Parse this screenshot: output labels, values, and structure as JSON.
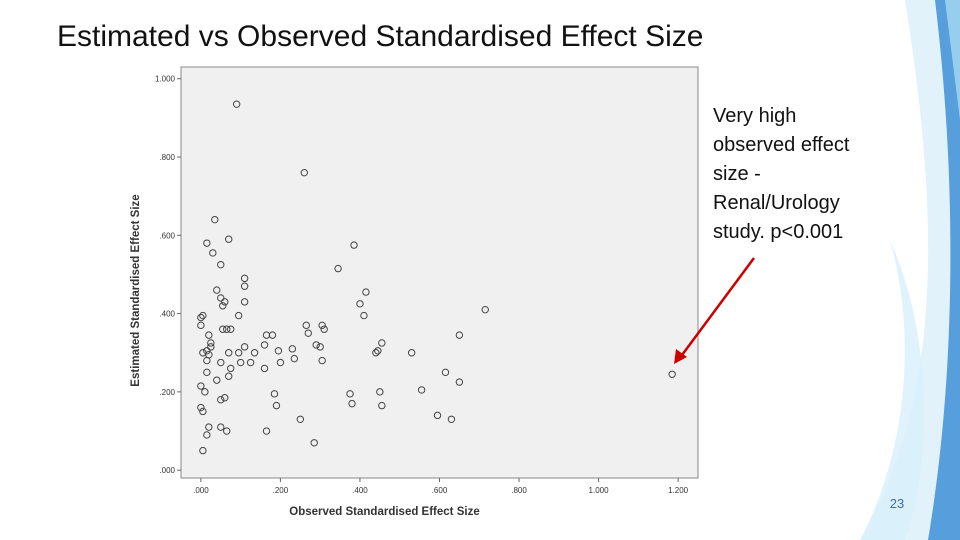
{
  "slide": {
    "title": "Estimated vs Observed Standardised Effect Size",
    "annotation_lines": [
      "Very high",
      "observed effect",
      "size -",
      "Renal/Urology",
      "study. p<0.001"
    ],
    "page_number": "23",
    "colors": {
      "arrow": "#cc0000",
      "plot_background": "#f0f0f0",
      "marker": "#444444",
      "decoration_blue": "#3d8fd6",
      "decoration_light": "#c9e8f7"
    }
  },
  "chart_data": {
    "type": "scatter",
    "title": "",
    "xlabel": "Observed Standardised Effect Size",
    "ylabel": "Estimated Standardised Effect Size",
    "xlim": [
      -0.05,
      1.25
    ],
    "ylim": [
      -0.02,
      1.03
    ],
    "x_ticks": [
      ".000",
      ".200",
      ".400",
      ".600",
      ".800",
      "1.000",
      "1.200"
    ],
    "y_ticks": [
      ".000",
      ".200",
      ".400",
      ".600",
      ".800",
      "1.000"
    ],
    "grid": false,
    "legend": "none",
    "points": [
      [
        0.09,
        0.935
      ],
      [
        0.26,
        0.76
      ],
      [
        0.035,
        0.64
      ],
      [
        0.07,
        0.59
      ],
      [
        0.015,
        0.58
      ],
      [
        0.385,
        0.575
      ],
      [
        0.03,
        0.555
      ],
      [
        0.05,
        0.525
      ],
      [
        0.345,
        0.515
      ],
      [
        0.11,
        0.49
      ],
      [
        0.11,
        0.47
      ],
      [
        0.415,
        0.455
      ],
      [
        0.04,
        0.46
      ],
      [
        0.06,
        0.43
      ],
      [
        0.05,
        0.44
      ],
      [
        0.055,
        0.42
      ],
      [
        0.11,
        0.43
      ],
      [
        0.4,
        0.425
      ],
      [
        0.715,
        0.41
      ],
      [
        0.095,
        0.395
      ],
      [
        0.41,
        0.395
      ],
      [
        0.0,
        0.39
      ],
      [
        0.005,
        0.395
      ],
      [
        0.0,
        0.37
      ],
      [
        0.055,
        0.36
      ],
      [
        0.065,
        0.36
      ],
      [
        0.075,
        0.36
      ],
      [
        0.265,
        0.37
      ],
      [
        0.305,
        0.37
      ],
      [
        0.31,
        0.36
      ],
      [
        0.27,
        0.35
      ],
      [
        0.165,
        0.345
      ],
      [
        0.18,
        0.345
      ],
      [
        0.02,
        0.345
      ],
      [
        0.65,
        0.345
      ],
      [
        0.025,
        0.325
      ],
      [
        0.455,
        0.325
      ],
      [
        0.11,
        0.315
      ],
      [
        0.16,
        0.32
      ],
      [
        0.025,
        0.315
      ],
      [
        0.29,
        0.32
      ],
      [
        0.3,
        0.315
      ],
      [
        0.005,
        0.3
      ],
      [
        0.015,
        0.305
      ],
      [
        0.02,
        0.295
      ],
      [
        0.07,
        0.3
      ],
      [
        0.095,
        0.3
      ],
      [
        0.135,
        0.3
      ],
      [
        0.195,
        0.305
      ],
      [
        0.23,
        0.31
      ],
      [
        0.2,
        0.275
      ],
      [
        0.44,
        0.3
      ],
      [
        0.53,
        0.3
      ],
      [
        0.015,
        0.28
      ],
      [
        0.05,
        0.275
      ],
      [
        0.1,
        0.275
      ],
      [
        0.125,
        0.275
      ],
      [
        0.235,
        0.285
      ],
      [
        0.305,
        0.28
      ],
      [
        0.445,
        0.305
      ],
      [
        0.015,
        0.25
      ],
      [
        0.075,
        0.26
      ],
      [
        0.16,
        0.26
      ],
      [
        0.615,
        0.25
      ],
      [
        0.04,
        0.23
      ],
      [
        0.07,
        0.24
      ],
      [
        0.65,
        0.225
      ],
      [
        0.0,
        0.215
      ],
      [
        0.01,
        0.2
      ],
      [
        0.185,
        0.195
      ],
      [
        0.375,
        0.195
      ],
      [
        0.45,
        0.2
      ],
      [
        0.555,
        0.205
      ],
      [
        1.185,
        0.245
      ],
      [
        0.05,
        0.18
      ],
      [
        0.06,
        0.185
      ],
      [
        0.38,
        0.17
      ],
      [
        0.455,
        0.165
      ],
      [
        0.19,
        0.165
      ],
      [
        0.0,
        0.16
      ],
      [
        0.005,
        0.15
      ],
      [
        0.595,
        0.14
      ],
      [
        0.63,
        0.13
      ],
      [
        0.25,
        0.13
      ],
      [
        0.02,
        0.11
      ],
      [
        0.05,
        0.11
      ],
      [
        0.065,
        0.1
      ],
      [
        0.165,
        0.1
      ],
      [
        0.015,
        0.09
      ],
      [
        0.285,
        0.07
      ],
      [
        0.005,
        0.05
      ]
    ]
  }
}
